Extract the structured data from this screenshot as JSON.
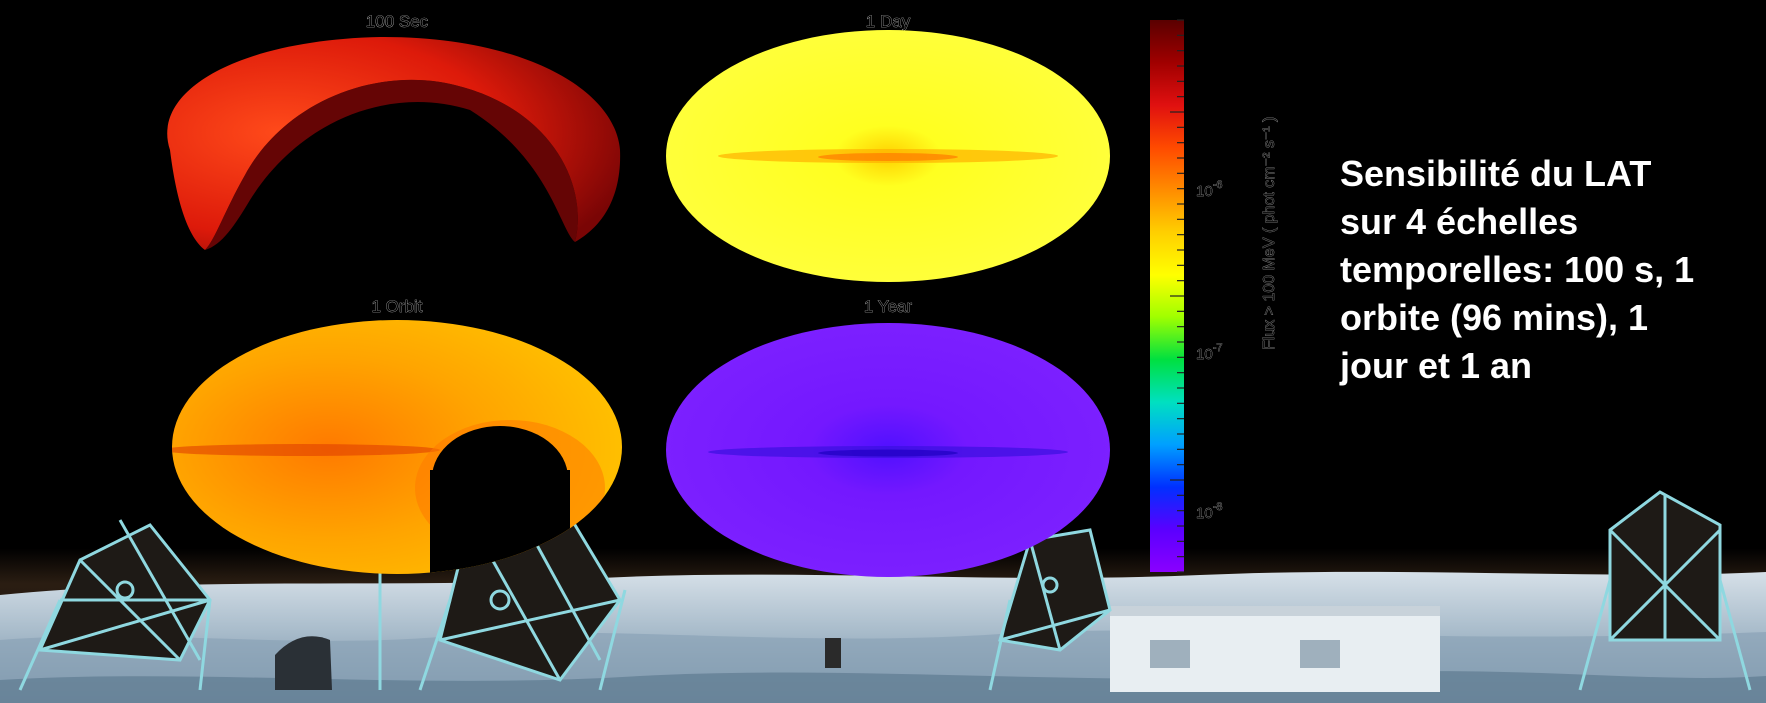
{
  "maps": [
    {
      "title": "100 Sec"
    },
    {
      "title": "1 Day"
    },
    {
      "title": "1 Orbit"
    },
    {
      "title": "1 Year"
    }
  ],
  "colorbar": {
    "label": "Flux > 100 MeV ( phot cm⁻² s⁻¹ )",
    "ticks": [
      {
        "base": "10",
        "exp": "-6"
      },
      {
        "base": "10",
        "exp": "-7"
      },
      {
        "base": "10",
        "exp": "-8"
      }
    ],
    "colors_top_to_bottom": [
      "#5a0000",
      "#a00000",
      "#e01010",
      "#ff4a00",
      "#ff8c00",
      "#ffcf00",
      "#ffff00",
      "#a0ff00",
      "#00e040",
      "#00e0c0",
      "#00a0ff",
      "#0030ff",
      "#5a00ff",
      "#8a00ff"
    ]
  },
  "caption": {
    "lines": [
      "Sensibilité du LAT",
      "sur 4 échelles",
      "temporelles: 100 s, 1",
      "orbite (96 mins), 1",
      "jour et 1 an"
    ]
  },
  "colors": {
    "map_100sec": "#d8180a",
    "map_1day": "#ffff1e",
    "map_1orbit": "#ffa000",
    "map_1year": "#7a1aff",
    "ground": "#b8cad6",
    "telescope_frame": "#8fd8e0"
  }
}
